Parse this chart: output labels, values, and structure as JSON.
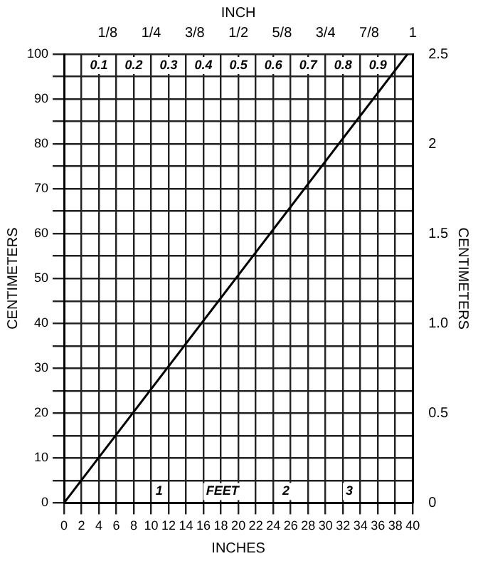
{
  "chart_data": {
    "type": "line",
    "xlabel": "INCHES",
    "ylabel": "CENTIMETERS",
    "y2label": "CENTIMETERS",
    "x2label": "INCH",
    "x": [
      0,
      39.4
    ],
    "series": [
      {
        "color": "#000000",
        "values": [
          0,
          100
        ]
      }
    ],
    "xlim": [
      0,
      40
    ],
    "xticks": [
      0,
      2,
      4,
      6,
      8,
      10,
      12,
      14,
      16,
      18,
      20,
      22,
      24,
      26,
      28,
      30,
      32,
      34,
      36,
      38,
      40
    ],
    "ylim": [
      0,
      100
    ],
    "yticks": [
      0,
      {
        "value": 5,
        "label": null
      },
      10,
      {
        "value": 15,
        "label": null
      },
      20,
      {
        "value": 25,
        "label": null
      },
      30,
      {
        "value": 35,
        "label": null
      },
      40,
      {
        "value": 45,
        "label": null
      },
      50,
      {
        "value": 55,
        "label": null
      },
      60,
      {
        "value": 65,
        "label": null
      },
      70,
      {
        "value": 75,
        "label": null
      },
      80,
      {
        "value": 85,
        "label": null
      },
      90,
      {
        "value": 95,
        "label": null
      },
      100
    ],
    "x2lim": [
      0,
      1
    ],
    "x2ticks": [
      {
        "value": 0.125,
        "label": "1/8"
      },
      {
        "value": 0.25,
        "label": "1/4"
      },
      {
        "value": 0.375,
        "label": "3/8"
      },
      {
        "value": 0.5,
        "label": "1/2"
      },
      {
        "value": 0.625,
        "label": "5/8"
      },
      {
        "value": 0.75,
        "label": "3/4"
      },
      {
        "value": 0.875,
        "label": "7/8"
      },
      1
    ],
    "y2lim": [
      0,
      2.5
    ],
    "y2ticks": [
      0,
      0.5,
      {
        "value": 1,
        "label": "1.0"
      },
      1.5,
      2,
      2.5
    ],
    "annotations": [
      "0.1",
      "0.2",
      "0.3",
      "0.4",
      "0.5",
      "0.6",
      "0.7",
      "0.8",
      "0.9",
      "1",
      "FEET",
      "2",
      "3"
    ],
    "grid": true,
    "legend": false,
    "marker": "none",
    "line_style": "solid"
  }
}
